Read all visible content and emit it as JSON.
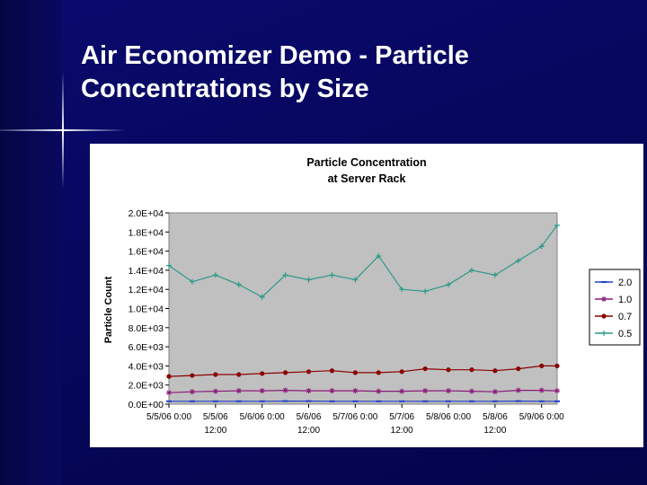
{
  "slide": {
    "title_line1": "Air Economizer Demo - Particle",
    "title_line2": "Concentrations by Size"
  },
  "chart_data": {
    "type": "line",
    "title": "Particle Concentration",
    "subtitle": "at Server Rack",
    "ylabel": "Particle Count",
    "xlabel": "",
    "ylim": [
      0,
      20000
    ],
    "y_tick_labels": [
      "0.0E+00",
      "2.0E+03",
      "4.0E+03",
      "6.0E+03",
      "8.0E+03",
      "1.0E+04",
      "1.2E+04",
      "1.4E+04",
      "1.6E+04",
      "1.8E+04",
      "2.0E+04"
    ],
    "x_tick_labels": [
      {
        "line1": "5/5/06 0:00",
        "line2": ""
      },
      {
        "line1": "5/5/06",
        "line2": "12:00"
      },
      {
        "line1": "5/6/06 0:00",
        "line2": ""
      },
      {
        "line1": "5/6/06",
        "line2": "12:00"
      },
      {
        "line1": "5/7/06 0:00",
        "line2": ""
      },
      {
        "line1": "5/7/06",
        "line2": "12:00"
      },
      {
        "line1": "5/8/06 0:00",
        "line2": ""
      },
      {
        "line1": "5/8/06",
        "line2": "12:00"
      },
      {
        "line1": "5/9/06 0:00",
        "line2": ""
      }
    ],
    "x_hours": [
      0,
      6,
      12,
      18,
      24,
      30,
      36,
      42,
      48,
      54,
      60,
      66,
      72,
      78,
      84,
      90,
      96,
      100
    ],
    "legend_position": "right",
    "grid": false,
    "plot_background": "#c0c0c0",
    "series": [
      {
        "name": "2.0",
        "color": "#1f3fc8",
        "marker": "dash",
        "values": [
          300,
          300,
          300,
          300,
          300,
          320,
          320,
          300,
          300,
          300,
          300,
          300,
          300,
          300,
          300,
          320,
          300,
          300
        ]
      },
      {
        "name": "1.0",
        "color": "#8b1a7a",
        "marker": "star",
        "values": [
          1200,
          1300,
          1350,
          1400,
          1400,
          1450,
          1400,
          1400,
          1400,
          1350,
          1350,
          1400,
          1400,
          1350,
          1300,
          1450,
          1450,
          1400
        ]
      },
      {
        "name": "0.7",
        "color": "#8b0000",
        "marker": "dot",
        "values": [
          2900,
          3000,
          3100,
          3100,
          3200,
          3300,
          3400,
          3500,
          3300,
          3300,
          3400,
          3700,
          3600,
          3600,
          3500,
          3700,
          4000,
          4000
        ]
      },
      {
        "name": "0.5",
        "color": "#2a9a8a",
        "marker": "plus",
        "values": [
          14500,
          12800,
          13500,
          12500,
          11200,
          13500,
          13000,
          13500,
          13000,
          15500,
          12000,
          11800,
          12500,
          14000,
          13500,
          15000,
          16500,
          18700
        ]
      }
    ]
  }
}
